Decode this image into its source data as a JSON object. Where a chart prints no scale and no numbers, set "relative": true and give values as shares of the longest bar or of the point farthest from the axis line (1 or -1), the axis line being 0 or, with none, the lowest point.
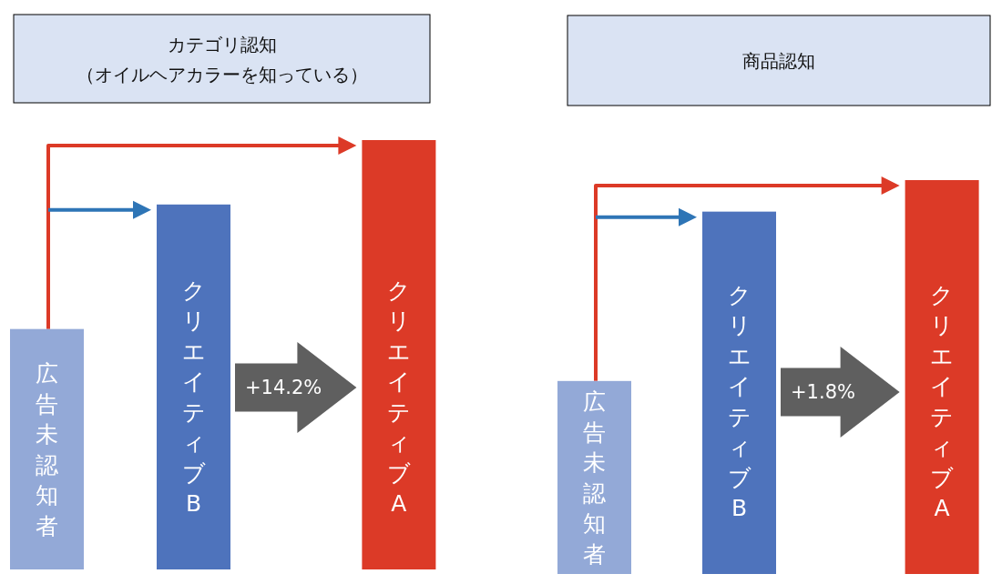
{
  "chart_data": [
    {
      "type": "bar",
      "title": "カテゴリ認知",
      "subtitle": "（オイルヘアカラーを知っている）",
      "categories": [
        "広告未認知者",
        "クリエイティブB",
        "クリエイティブA"
      ],
      "values": [
        0.56,
        0.85,
        1
      ],
      "colors": [
        "#93a9d7",
        "#4e73bc",
        "#dc3a27"
      ],
      "relative": true,
      "annotations": [
        "+14.2%"
      ]
    },
    {
      "type": "bar",
      "title": "商品認知",
      "categories": [
        "広告未認知者",
        "クリエイティブB",
        "クリエイティブA"
      ],
      "values": [
        0.49,
        0.92,
        1
      ],
      "colors": [
        "#93a9d7",
        "#4e73bc",
        "#dc3a27"
      ],
      "relative": true,
      "annotations": [
        "+1.8%"
      ]
    }
  ]
}
